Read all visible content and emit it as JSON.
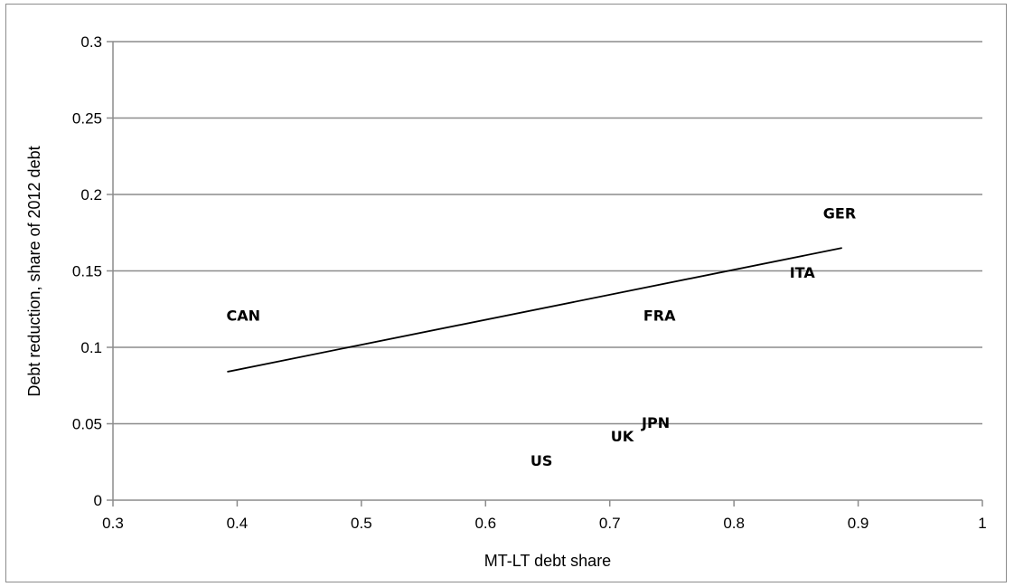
{
  "chart_data": {
    "type": "scatter",
    "title": "",
    "xlabel": "MT-LT debt share",
    "ylabel": "Debt reduction, share of 2012 debt",
    "xlim": [
      0.3,
      1
    ],
    "ylim": [
      0,
      0.3
    ],
    "x_ticks": [
      "0.3",
      "0.4",
      "0.5",
      "0.6",
      "0.7",
      "0.8",
      "0.9",
      "1"
    ],
    "y_ticks": [
      "0",
      "0.05",
      "0.1",
      "0.15",
      "0.2",
      "0.25",
      "0.3"
    ],
    "grid": "horizontal",
    "points": [
      {
        "label": "CAN",
        "x": 0.405,
        "y": 0.121
      },
      {
        "label": "FRA",
        "x": 0.74,
        "y": 0.121
      },
      {
        "label": "ITA",
        "x": 0.855,
        "y": 0.149
      },
      {
        "label": "GER",
        "x": 0.885,
        "y": 0.188
      },
      {
        "label": "JPN",
        "x": 0.737,
        "y": 0.051
      },
      {
        "label": "UK",
        "x": 0.71,
        "y": 0.042
      },
      {
        "label": "US",
        "x": 0.645,
        "y": 0.026
      }
    ],
    "trendline": {
      "x": [
        0.392,
        0.887
      ],
      "y": [
        0.084,
        0.165
      ]
    }
  }
}
